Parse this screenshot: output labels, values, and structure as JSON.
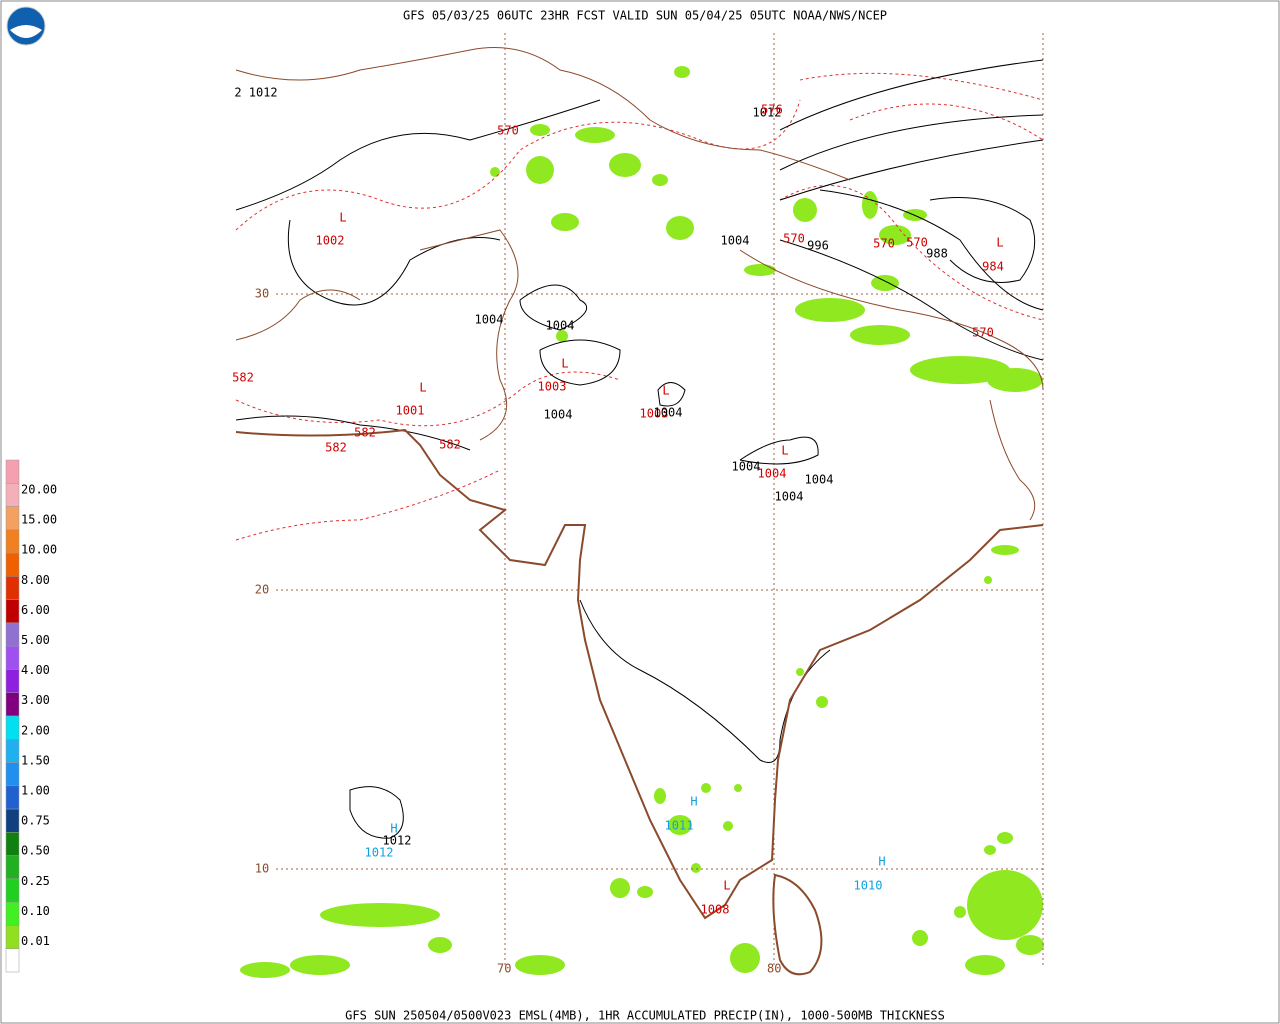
{
  "header": {
    "title": "GFS 05/03/25 06UTC 23HR FCST VALID SUN 05/04/25 05UTC NOAA/NWS/NCEP"
  },
  "footer": {
    "title": "GFS SUN 250504/0500V023 EMSL(4MB), 1HR ACCUMULATED PRECIP(IN), 1000-500MB THICKNESS"
  },
  "legend": {
    "labels": [
      "20.00",
      "15.00",
      "10.00",
      "8.00",
      "6.00",
      "5.00",
      "4.00",
      "3.00",
      "2.00",
      "1.50",
      "1.00",
      "0.75",
      "0.50",
      "0.25",
      "0.10",
      "0.01"
    ],
    "colors": [
      "#f4a0b0",
      "#f4b0b8",
      "#f4a060",
      "#f08020",
      "#f06000",
      "#e03000",
      "#c00000",
      "#9070d0",
      "#a050f0",
      "#9020e0",
      "#800080",
      "#00e0f0",
      "#20b0f0",
      "#2090f0",
      "#2060d0",
      "#104080",
      "#108010",
      "#20b020",
      "#20d020",
      "#40f020",
      "#90e020",
      "#ffffff"
    ]
  },
  "grid": {
    "lat_labels": [
      "30",
      "20",
      "10"
    ],
    "lon_labels": [
      "70",
      "80"
    ]
  },
  "map": {
    "pressure_centers": [
      {
        "symbol": "L",
        "value": "1002",
        "color": "#d00000"
      },
      {
        "symbol": "L",
        "value": "1001",
        "color": "#d00000"
      },
      {
        "symbol": "L",
        "value": "1003",
        "color": "#d00000"
      },
      {
        "symbol": "L",
        "value": "1003",
        "color": "#d00000"
      },
      {
        "symbol": "L",
        "value": "1004",
        "color": "#d00000"
      },
      {
        "symbol": "L",
        "value": "984",
        "color": "#d00000"
      },
      {
        "symbol": "L",
        "value": "1008",
        "color": "#d00000"
      },
      {
        "symbol": "H",
        "value": "1011",
        "color": "#10a0e0"
      },
      {
        "symbol": "H",
        "value": "1012",
        "color": "#10a0e0"
      },
      {
        "symbol": "H",
        "value": "1010",
        "color": "#10a0e0"
      }
    ],
    "isobar_labels": [
      "2 1012",
      "1012",
      "1004",
      "996",
      "988",
      "1004",
      "1004",
      "1004",
      "1004",
      "1004",
      "1004",
      "1004",
      "1012"
    ],
    "thickness_labels": [
      "570",
      "576",
      "570",
      "570",
      "570",
      "570",
      "582",
      "582",
      "582",
      "582"
    ]
  }
}
